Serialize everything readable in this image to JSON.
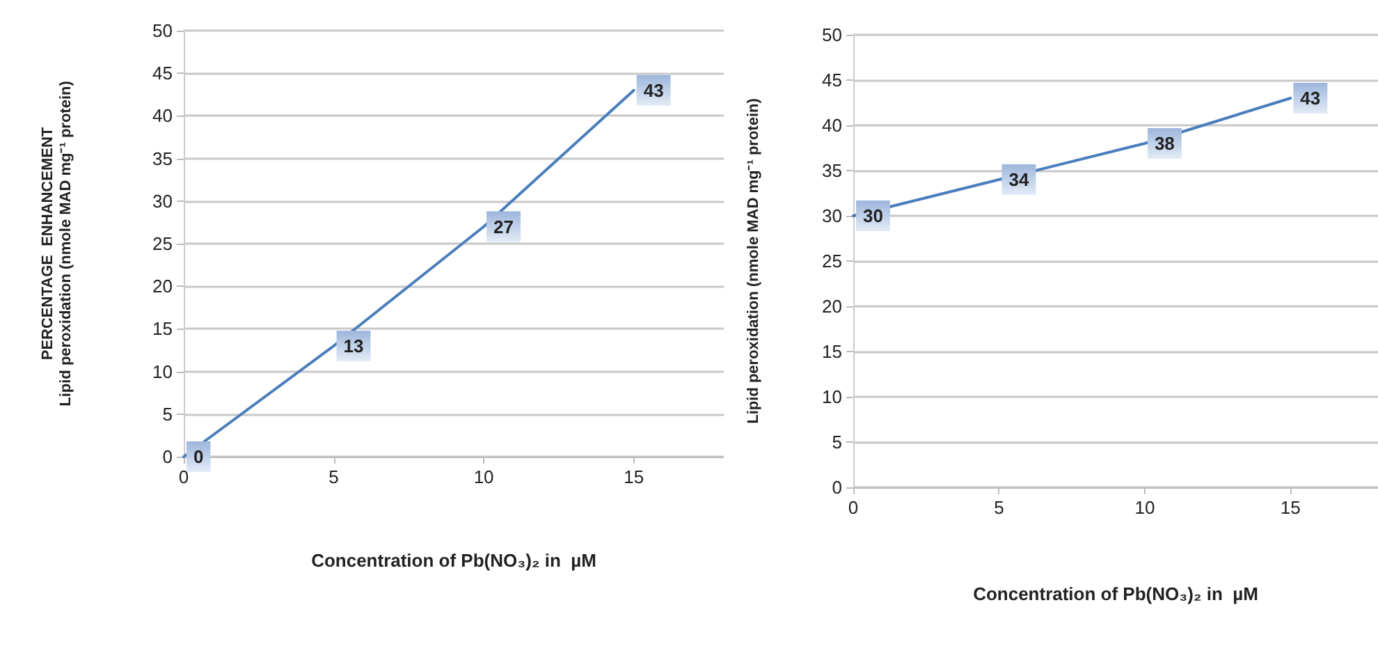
{
  "chart_data": [
    {
      "type": "line",
      "ylabel": "PERCENTAGE  ENHANCEMENT\nLipid peroxidation (nmole MAD mg⁻¹ protein)",
      "xlabel": "Concentration of Pb(NO₃)₂ in  µM",
      "x": [
        0,
        5,
        10,
        15
      ],
      "values": [
        0,
        13,
        27,
        43
      ],
      "color": "#4a7ebb",
      "xlim": [
        0,
        18
      ],
      "xticks": [
        0,
        5,
        10,
        15
      ],
      "ylim": [
        0,
        50
      ],
      "yticks": [
        0,
        5,
        10,
        15,
        20,
        25,
        30,
        35,
        40,
        45,
        50
      ],
      "grid": "y",
      "data_labels": true
    },
    {
      "type": "line",
      "ylabel": "Lipid peroxidation (nmole MAD mg⁻¹ protein)",
      "xlabel": "Concentration of Pb(NO₃)₂ in  µM",
      "x": [
        0,
        5,
        10,
        15
      ],
      "values": [
        30,
        34,
        38,
        43
      ],
      "color": "#4a7ebb",
      "xlim": [
        0,
        18
      ],
      "xticks": [
        0,
        5,
        10,
        15
      ],
      "ylim": [
        0,
        50
      ],
      "yticks": [
        0,
        5,
        10,
        15,
        20,
        25,
        30,
        35,
        40,
        45,
        50
      ],
      "grid": "y",
      "data_labels": true
    }
  ]
}
